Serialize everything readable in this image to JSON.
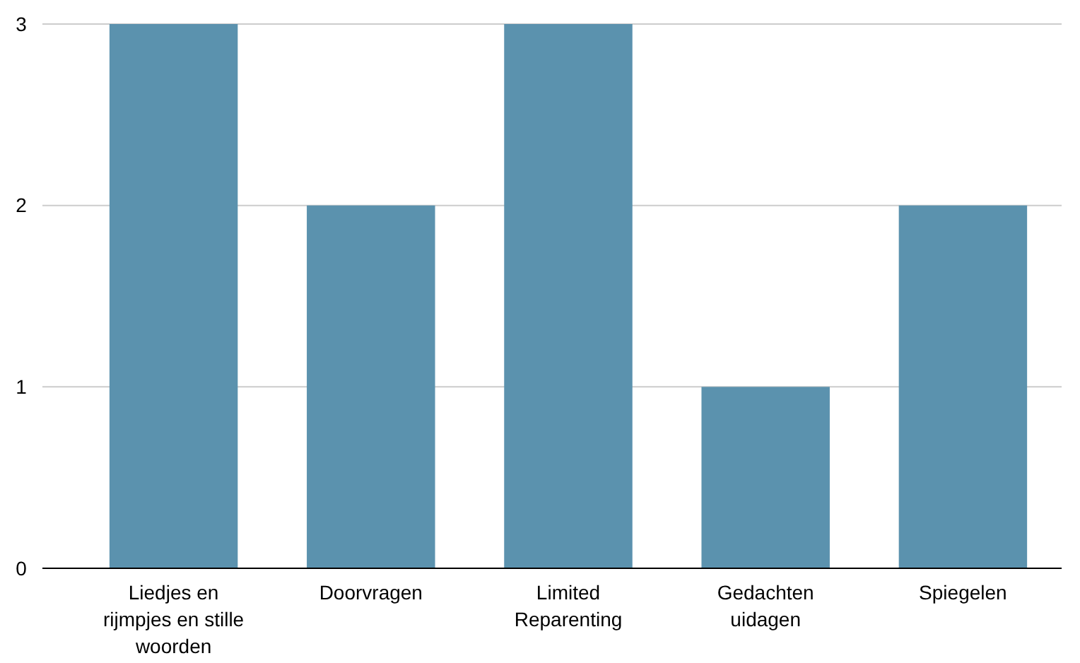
{
  "chart_data": {
    "type": "bar",
    "categories": [
      "Liedjes en rijmpjes en stille woorden",
      "Doorvragen",
      "Limited Reparenting",
      "Gedachten uidagen",
      "Spiegelen"
    ],
    "values": [
      3,
      2,
      3,
      1,
      2
    ],
    "color": "#5b92ae",
    "ylim": [
      0,
      3
    ],
    "yticks": [
      0,
      1,
      2,
      3
    ],
    "grid": "y"
  }
}
